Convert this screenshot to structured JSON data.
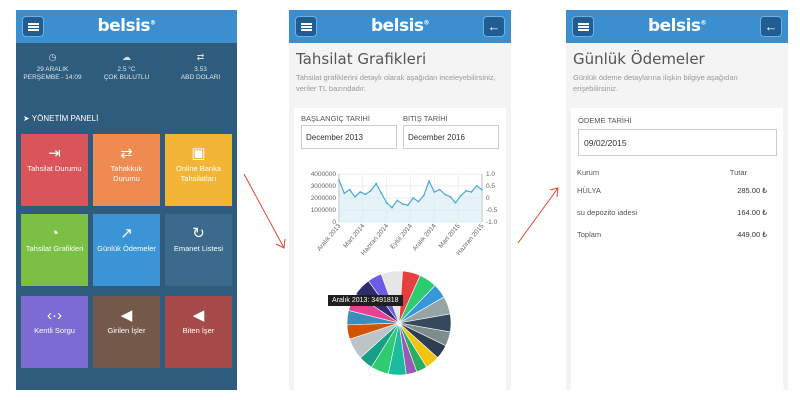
{
  "brand": {
    "logo": "belsis",
    "mark": "®"
  },
  "dashboard": {
    "weather": [
      {
        "icon": "clock-icon",
        "lines": [
          "29 ARALIK",
          "PERŞEMBE - 14:09"
        ]
      },
      {
        "icon": "cloud-icon",
        "lines": [
          "2.5 °C",
          "ÇOK BULUTLU"
        ]
      },
      {
        "icon": "currency-icon",
        "lines": [
          "3.53",
          "ABD DOLARI"
        ]
      }
    ],
    "panel_title": "YÖNETİM PANELİ",
    "tiles": [
      {
        "label": "Tahsilat Durumu",
        "color": "#d9555a",
        "icon": "arrow-right-icon",
        "glyph": "⇥"
      },
      {
        "label": "Tahakkuk Durumu",
        "color": "#ef8b50",
        "icon": "transfer-icon",
        "glyph": "⇄"
      },
      {
        "label": "Online Banka Tahsilatları",
        "color": "#f2b535",
        "icon": "briefcase-icon",
        "glyph": "▣"
      },
      {
        "label": "Tahsilat Grafikleri",
        "color": "#7bbf45",
        "icon": "pie-chart-icon",
        "glyph": "◔"
      },
      {
        "label": "Günlük Ödemeler",
        "color": "#3a94d6",
        "icon": "trend-up-icon",
        "glyph": "↗"
      },
      {
        "label": "Emanet Listesi",
        "color": "#3c6a8c",
        "icon": "refresh-icon",
        "glyph": "↻"
      },
      {
        "label": "Kentli Sorgu",
        "color": "#7c6bd2",
        "icon": "code-arrows-icon",
        "glyph": "‹·›"
      },
      {
        "label": "Girilen İşler",
        "color": "#74594a",
        "icon": "megaphone-icon",
        "glyph": "◀"
      },
      {
        "label": "Biten İşer",
        "color": "#a54949",
        "icon": "megaphone-icon",
        "glyph": "◀"
      }
    ]
  },
  "charts_page": {
    "title": "Tahsilat Grafikleri",
    "description": "Tahsilat grafiklerini detaylı olarak aşağıdan inceleyebilirsiniz, veriler TL bazındadır.",
    "start_label": "BAŞLANGIÇ TARİHİ",
    "start_value": "December 2013",
    "end_label": "BITIŞ TARİHİ",
    "end_value": "December 2016",
    "tooltip": "Aralık 2013: 3491818"
  },
  "payments_page": {
    "title": "Günlük Ödemeler",
    "description": "Günlük ödeme detaylarına ilişkin bilgiye aşağıdan erişebilirsiniz.",
    "date_label": "ÖDEME TARİHİ",
    "date_value": "09/02/2015",
    "col_kurum": "Kurum",
    "col_tutar": "Tutar",
    "rows": [
      {
        "kurum": "HÜLYA",
        "tutar": "285.00 ₺"
      },
      {
        "kurum": "su depozito iadesi",
        "tutar": "164.00 ₺"
      },
      {
        "kurum": "Toplam",
        "tutar": "449.00 ₺"
      }
    ]
  },
  "colors": {
    "topbar": "#3b8fcf",
    "dashboard_bg": "#2f5b7d",
    "arrow": "#e0443a"
  },
  "chart_data": [
    {
      "type": "line",
      "title": "",
      "x_ticks": [
        "Aralık 2013",
        "Mart 2014",
        "Haziran 2014",
        "Eylül 2014",
        "Aralık 2014",
        "Mart 2015",
        "Haziran 2015"
      ],
      "y_left_ticks": [
        "4000000",
        "3000000",
        "2000000",
        "1000000",
        "0"
      ],
      "y_right_ticks": [
        "1.0",
        "0.5",
        "0",
        "-0.5",
        "-1.0"
      ],
      "ylim": [
        0,
        4000000
      ],
      "series": [
        {
          "values": [
            3491818,
            2400000,
            2700000,
            2100000,
            2500000,
            2300000,
            2600000,
            3200000,
            2400000,
            1600000,
            1200000,
            1800000,
            1500000,
            1400000,
            2000000,
            1700000,
            2200000,
            3400000,
            2500000,
            2700000,
            2300000,
            2100000,
            1600000,
            2200000,
            2600000,
            2500000,
            3000000,
            2700000
          ]
        }
      ],
      "grid": true
    },
    {
      "type": "pie",
      "slices": [
        {
          "value": 6,
          "color": "#e6e6e6"
        },
        {
          "value": 5,
          "color": "#e53f3f"
        },
        {
          "value": 5,
          "color": "#2ecc71"
        },
        {
          "value": 4,
          "color": "#3498db"
        },
        {
          "value": 5,
          "color": "#95a5a6"
        },
        {
          "value": 5,
          "color": "#34495e"
        },
        {
          "value": 4,
          "color": "#7f8c8d"
        },
        {
          "value": 4,
          "color": "#2c3e50"
        },
        {
          "value": 4,
          "color": "#f1c40f"
        },
        {
          "value": 3,
          "color": "#27ae60"
        },
        {
          "value": 3,
          "color": "#9b59b6"
        },
        {
          "value": 5,
          "color": "#1abc9c"
        },
        {
          "value": 5,
          "color": "#2ecc71"
        },
        {
          "value": 4,
          "color": "#16a085"
        },
        {
          "value": 6,
          "color": "#bdc3c7"
        },
        {
          "value": 4,
          "color": "#d35400"
        },
        {
          "value": 4,
          "color": "#3c8dbc"
        },
        {
          "value": 5,
          "color": "#e84393"
        },
        {
          "value": 5,
          "color": "#2d2d6d"
        },
        {
          "value": 4,
          "color": "#6c5ce7"
        }
      ]
    }
  ]
}
